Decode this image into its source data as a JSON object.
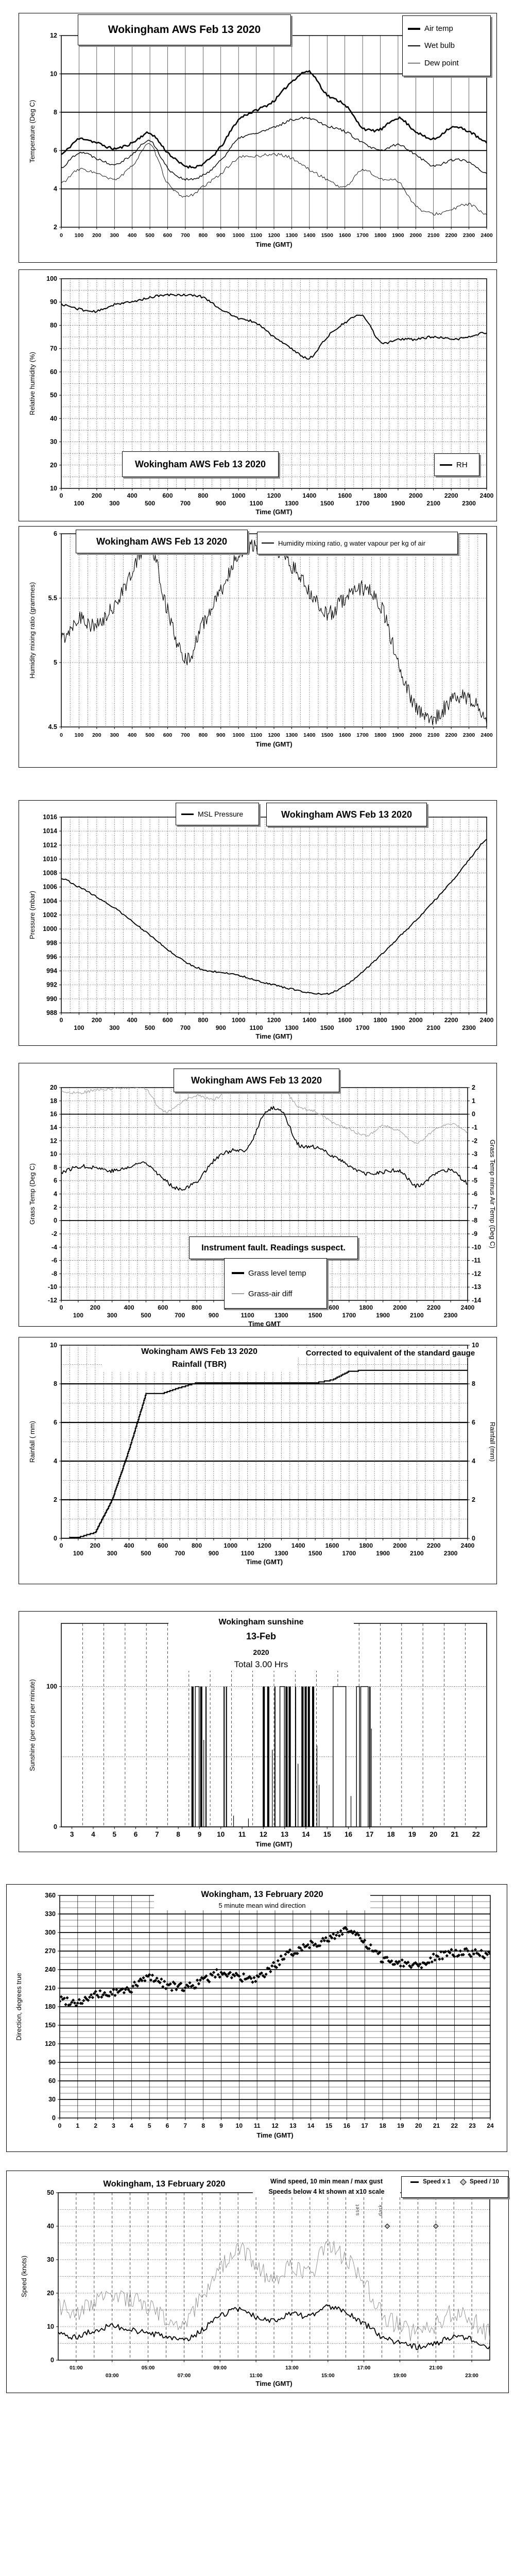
{
  "page": {
    "background": "#ffffff",
    "ink": "#000000",
    "gray_line": "#a0a0a0"
  },
  "chart_data": [
    {
      "id": "air-temperature",
      "type": "line",
      "title": "Wokingham AWS Feb 13 2020",
      "xlabel": "Time (GMT)",
      "ylabel": "Temperature (Deg C)",
      "xlim": [
        0,
        2400
      ],
      "ylim": [
        2,
        12
      ],
      "yticks": [
        12,
        10,
        8,
        6,
        4,
        2
      ],
      "xticks": [
        0,
        100,
        200,
        300,
        400,
        500,
        600,
        700,
        800,
        900,
        1000,
        1100,
        1200,
        1300,
        1400,
        1500,
        1600,
        1700,
        1800,
        1900,
        2000,
        2100,
        2200,
        2300,
        2400
      ],
      "legend": [
        "Air temp",
        "Wet bulb",
        "Dew point"
      ],
      "series": [
        {
          "name": "Air temp",
          "anchors_hourly": [
            5.8,
            6.6,
            6.4,
            6.1,
            6.4,
            6.9,
            5.9,
            5.2,
            5.3,
            6.2,
            7.6,
            8.1,
            8.6,
            9.6,
            10.1,
            8.9,
            8.4,
            7.2,
            7.1,
            7.7,
            7.0,
            6.6,
            7.2,
            7.0,
            6.4
          ]
        },
        {
          "name": "Wet bulb",
          "anchors_hourly": [
            5.1,
            5.9,
            5.6,
            5.3,
            5.8,
            6.5,
            5.1,
            4.5,
            4.7,
            5.5,
            6.6,
            6.9,
            7.2,
            7.6,
            7.7,
            7.3,
            7.0,
            6.4,
            6.0,
            6.3,
            5.8,
            5.2,
            5.5,
            5.4,
            4.8
          ]
        },
        {
          "name": "Dew point",
          "anchors_hourly": [
            4.3,
            5.0,
            4.8,
            4.5,
            5.2,
            6.3,
            4.3,
            3.6,
            4.1,
            4.8,
            5.6,
            5.7,
            5.8,
            5.6,
            5.0,
            4.5,
            4.1,
            5.0,
            4.5,
            4.4,
            3.1,
            2.7,
            2.9,
            3.2,
            2.6
          ]
        }
      ]
    },
    {
      "id": "relative-humidity",
      "type": "line",
      "title": "Wokingham AWS Feb 13 2020",
      "xlabel": "Time (GMT)",
      "ylabel": "Relative humidity (%)",
      "xlim": [
        0,
        2400
      ],
      "ylim": [
        10,
        100
      ],
      "yticks": [
        100,
        90,
        80,
        70,
        60,
        50,
        40,
        30,
        20,
        10
      ],
      "xticks_rows": [
        {
          "labels": [
            0,
            200,
            400,
            600,
            800,
            1000,
            1200,
            1400,
            1600,
            1800,
            2000,
            2200,
            2400
          ],
          "pos": [
            0,
            200,
            400,
            600,
            800,
            1000,
            1200,
            1400,
            1600,
            1800,
            2000,
            2200,
            2400
          ]
        },
        {
          "labels": [
            100,
            300,
            500,
            700,
            900,
            1100,
            1300,
            1500,
            1700,
            1900,
            2100,
            2300
          ],
          "pos": [
            100,
            300,
            500,
            700,
            900,
            1100,
            1300,
            1500,
            1700,
            1900,
            2100,
            2300
          ]
        }
      ],
      "legend": [
        "RH"
      ],
      "series": [
        {
          "name": "RH",
          "anchors_hourly": [
            89,
            87,
            86,
            89,
            90,
            92,
            93,
            93,
            92,
            87,
            83,
            81,
            75,
            70,
            66,
            75,
            81,
            84,
            73,
            74,
            74,
            75,
            74,
            75,
            77
          ]
        }
      ]
    },
    {
      "id": "humidity-mixing-ratio",
      "type": "line",
      "title": "Wokingham AWS Feb 13 2020",
      "xlabel": "Time (GMT)",
      "ylabel": "Humidity mixing ratio (grammes)",
      "xlim": [
        0,
        2400
      ],
      "ylim": [
        4.5,
        6
      ],
      "yticks": [
        6,
        5.5,
        5,
        4.5
      ],
      "xticks": [
        0,
        100,
        200,
        300,
        400,
        500,
        600,
        700,
        800,
        900,
        1000,
        1100,
        1200,
        1300,
        1400,
        1500,
        1600,
        1700,
        1800,
        1900,
        2000,
        2100,
        2200,
        2300,
        2400
      ],
      "legend": [
        "Humidity mixing ratio, g water vapour per kg of air"
      ],
      "series": [
        {
          "name": "Humidity mixing ratio",
          "anchors_hourly": [
            5.18,
            5.35,
            5.28,
            5.45,
            5.7,
            5.93,
            5.4,
            5.02,
            5.3,
            5.55,
            5.85,
            5.9,
            5.88,
            5.75,
            5.55,
            5.38,
            5.5,
            5.58,
            5.45,
            5.0,
            4.65,
            4.57,
            4.7,
            4.72,
            4.58
          ]
        }
      ]
    },
    {
      "id": "msl-pressure",
      "type": "line",
      "title": "Wokingham AWS Feb 13 2020",
      "xlabel": "Time (GMT)",
      "ylabel": "Pressure (mbar)",
      "xlim": [
        0,
        2400
      ],
      "ylim": [
        988,
        1016
      ],
      "yticks": [
        1016,
        1014,
        1012,
        1010,
        1008,
        1006,
        1004,
        1002,
        1000,
        998,
        996,
        994,
        992,
        990,
        988
      ],
      "xticks_rows": [
        {
          "labels": [
            0,
            200,
            400,
            600,
            800,
            1000,
            1200,
            1400,
            1600,
            1800,
            2000,
            2200,
            2400
          ],
          "pos": [
            0,
            200,
            400,
            600,
            800,
            1000,
            1200,
            1400,
            1600,
            1800,
            2000,
            2200,
            2400
          ]
        },
        {
          "labels": [
            100,
            300,
            500,
            700,
            900,
            1100,
            1300,
            1500,
            1700,
            1900,
            2100,
            2300
          ],
          "pos": [
            100,
            300,
            500,
            700,
            900,
            1100,
            1300,
            1500,
            1700,
            1900,
            2100,
            2300
          ]
        }
      ],
      "legend": [
        "MSL Pressure"
      ],
      "series": [
        {
          "name": "MSL Pressure",
          "anchors_hourly": [
            1007.3,
            1006.0,
            1004.6,
            1003.0,
            1001.1,
            999.1,
            997.1,
            995.3,
            994.2,
            993.8,
            993.4,
            992.6,
            992.0,
            991.4,
            990.9,
            990.7,
            991.9,
            993.9,
            996.2,
            998.7,
            1001.2,
            1003.9,
            1006.7,
            1009.9,
            1012.8
          ]
        }
      ]
    },
    {
      "id": "grass-temperature",
      "type": "line",
      "title": "Wokingham AWS Feb 13 2020",
      "note": "Instrument fault. Readings suspect.",
      "xlabel": "Time GMT",
      "ylabel": "Grass Temp (Deg C)",
      "y2label": "Grass Temp minus Air Temp (Deg C)",
      "xlim": [
        0,
        2400
      ],
      "ylim": [
        -12,
        20
      ],
      "y2lim": [
        -14,
        2
      ],
      "yticks": [
        20,
        18,
        16,
        14,
        12,
        10,
        8,
        6,
        4,
        2,
        0,
        -2,
        -4,
        -6,
        -8,
        -10,
        -12
      ],
      "y2ticks": [
        2,
        1,
        0,
        -1,
        -2,
        -3,
        -4,
        -5,
        -6,
        -7,
        -8,
        -9,
        -10,
        -11,
        -12,
        -13,
        -14
      ],
      "xticks_rows": [
        {
          "labels": [
            0,
            200,
            400,
            600,
            800,
            1000,
            1200,
            1400,
            1600,
            1800,
            2000,
            2200,
            2400
          ],
          "pos": [
            0,
            200,
            400,
            600,
            800,
            1000,
            1200,
            1400,
            1600,
            1800,
            2000,
            2200,
            2400
          ]
        },
        {
          "labels": [
            100,
            300,
            500,
            700,
            900,
            1100,
            1300,
            1500,
            1700,
            1900,
            2100,
            2300
          ],
          "pos": [
            100,
            300,
            500,
            700,
            900,
            1100,
            1300,
            1500,
            1700,
            1900,
            2100,
            2300
          ]
        }
      ],
      "legend": [
        "Grass level temp",
        "Grass-air diff"
      ],
      "series": [
        {
          "name": "Grass level temp",
          "anchors_hourly": [
            7.3,
            8.1,
            8.0,
            7.5,
            8.0,
            8.7,
            6.3,
            4.8,
            5.9,
            9.0,
            10.5,
            10.8,
            16.0,
            16.5,
            11.5,
            11.0,
            9.8,
            8.3,
            7.0,
            7.3,
            7.4,
            5.2,
            6.8,
            7.5,
            5.6
          ]
        },
        {
          "name": "Grass-air diff",
          "axis": "right",
          "anchors_hourly": [
            1.7,
            1.6,
            1.8,
            1.9,
            2.0,
            1.9,
            0.2,
            0.8,
            1.4,
            1.1,
            1.9,
            1.6,
            2.0,
            2.0,
            0.6,
            0.2,
            -0.6,
            -1.1,
            -1.6,
            -0.9,
            -1.3,
            -2.2,
            -1.2,
            -0.7,
            -1.3
          ]
        }
      ]
    },
    {
      "id": "rainfall",
      "type": "line",
      "title": "Wokingham AWS Feb 13 2020",
      "subtitle": "Rainfall (TBR)",
      "note": "Corrected to equivalent of the standard gauge",
      "xlabel": "Time (GMT)",
      "ylabel": "Rainfall ( mm)",
      "y2label": "Rainfall (mm)",
      "xlim": [
        0,
        2400
      ],
      "ylim": [
        0,
        10
      ],
      "yticks": [
        10,
        8,
        6,
        4,
        2,
        0
      ],
      "y2ticks": [
        10,
        8,
        6,
        4,
        2,
        0
      ],
      "xticks_rows": [
        {
          "labels": [
            0,
            200,
            400,
            600,
            800,
            1000,
            1200,
            1400,
            1600,
            1800,
            2000,
            2200,
            2400
          ],
          "pos": [
            0,
            200,
            400,
            600,
            800,
            1000,
            1200,
            1400,
            1600,
            1800,
            2000,
            2200,
            2400
          ]
        },
        {
          "labels": [
            100,
            300,
            500,
            700,
            900,
            1100,
            1300,
            1500,
            1700,
            1900,
            2100,
            2300
          ],
          "pos": [
            100,
            300,
            500,
            700,
            900,
            1100,
            1300,
            1500,
            1700,
            1900,
            2100,
            2300
          ]
        }
      ],
      "legend": [],
      "series": [
        {
          "name": "Cumulative rainfall",
          "style": "steps",
          "anchors_hourly": [
            0,
            0.05,
            0.3,
            2.0,
            4.6,
            7.5,
            7.5,
            7.8,
            8.05,
            8.05,
            8.05,
            8.05,
            8.05,
            8.05,
            8.05,
            8.05,
            8.2,
            8.65,
            8.7,
            8.7,
            8.7,
            8.7,
            8.7,
            8.7,
            8.7
          ]
        }
      ]
    },
    {
      "id": "sunshine",
      "type": "bar",
      "title": "Wokingham sunshine",
      "date_label": "13-Feb",
      "year_label": "2020",
      "total_label": "Total 3.00 Hrs",
      "xlabel": "Time (GMT)",
      "ylabel": "Sunshine (per cent per minute)",
      "xlim": [
        2.5,
        22.5
      ],
      "ylim": [
        0,
        145
      ],
      "yticks": [
        100,
        0
      ],
      "xticks": [
        3,
        4,
        5,
        6,
        7,
        8,
        9,
        10,
        11,
        12,
        13,
        14,
        15,
        16,
        17,
        18,
        19,
        20,
        21,
        22
      ],
      "sun_intervals_pct100": [
        [
          8.62,
          8.72
        ],
        [
          8.8,
          8.98
        ],
        [
          9.03,
          9.13
        ],
        [
          9.28,
          9.33
        ],
        [
          10.13,
          10.18
        ],
        [
          10.24,
          10.29
        ],
        [
          11.97,
          12.07
        ],
        [
          12.18,
          12.28
        ],
        [
          12.52,
          12.57
        ],
        [
          12.78,
          12.99
        ],
        [
          13.04,
          13.14
        ],
        [
          13.19,
          13.29
        ],
        [
          13.49,
          13.54
        ],
        [
          13.79,
          13.89
        ],
        [
          13.94,
          14.04
        ],
        [
          14.09,
          14.19
        ],
        [
          14.29,
          14.39
        ],
        [
          15.28,
          15.88
        ],
        [
          16.38,
          16.52
        ],
        [
          16.58,
          16.93
        ],
        [
          16.98,
          17.04
        ]
      ],
      "sun_spikes": [
        [
          9.2,
          62
        ],
        [
          10.6,
          8
        ],
        [
          11.3,
          6
        ],
        [
          12.42,
          55
        ],
        [
          13.63,
          45
        ],
        [
          14.52,
          58
        ],
        [
          14.62,
          30
        ],
        [
          16.12,
          22
        ],
        [
          17.08,
          70
        ]
      ]
    },
    {
      "id": "wind-direction",
      "type": "scatter",
      "title": "Wokingham,  13 February 2020",
      "subtitle": "5 minute mean wind direction",
      "xlabel": "Time (GMT)",
      "ylabel": "Direction, degrees true",
      "xlim": [
        0,
        24
      ],
      "ylim": [
        0,
        360
      ],
      "yticks": [
        360,
        330,
        300,
        270,
        240,
        210,
        180,
        150,
        120,
        90,
        60,
        30,
        0
      ],
      "xticks": [
        0,
        1,
        2,
        3,
        4,
        5,
        6,
        7,
        8,
        9,
        10,
        11,
        12,
        13,
        14,
        15,
        16,
        17,
        18,
        19,
        20,
        21,
        22,
        23,
        24
      ],
      "legend": [],
      "series": [
        {
          "name": "5 min mean direction",
          "anchors_hourly": [
            192,
            188,
            198,
            202,
            210,
            228,
            215,
            212,
            222,
            235,
            228,
            224,
            248,
            268,
            282,
            288,
            305,
            282,
            258,
            252,
            248,
            262,
            266,
            268,
            262
          ]
        }
      ]
    },
    {
      "id": "wind-speed",
      "type": "line",
      "title": "Wokingham,  13 February 2020",
      "note1": "Wind speed, 10 min mean / max gust",
      "note2": "Speeds below 4 kt shown at x10 scale",
      "xlabel": "Time (GMT)",
      "ylabel": "Speed (knots)",
      "xlim": [
        0,
        24
      ],
      "ylim": [
        0,
        50
      ],
      "yticks": [
        50,
        40,
        30,
        20,
        10,
        0
      ],
      "xticks_rows": [
        {
          "labels": [
            "01:00",
            "05:00",
            "09:00",
            "13:00",
            "17:00",
            "21:00"
          ],
          "pos": [
            1,
            5,
            9,
            13,
            17,
            21
          ]
        },
        {
          "labels": [
            "03:00",
            "07:00",
            "11:00",
            "15:00",
            "19:00",
            "23:00"
          ],
          "pos": [
            3,
            7,
            11,
            15,
            19,
            23
          ]
        }
      ],
      "legend": [
        "Speed x 1",
        "Speed / 10"
      ],
      "series": [
        {
          "name": "Max gust",
          "anchors_hourly": [
            16,
            14,
            18,
            20,
            18,
            16,
            13,
            12,
            19,
            27,
            33,
            28,
            25,
            28,
            26,
            34,
            30,
            23,
            14,
            10,
            8,
            11,
            14,
            12,
            8
          ]
        },
        {
          "name": "10 min mean",
          "anchors_hourly": [
            8,
            7,
            9,
            10,
            9,
            8,
            7,
            6,
            9,
            13,
            15,
            13,
            12,
            14,
            13,
            16,
            14,
            11,
            7,
            5,
            4,
            5,
            7,
            6,
            4
          ]
        }
      ],
      "calm_x10_points": [
        [
          18.3,
          40
        ],
        [
          21.0,
          40
        ]
      ],
      "annotations": [
        {
          "label": "sset"
        },
        {
          "label": "dark"
        }
      ]
    }
  ]
}
